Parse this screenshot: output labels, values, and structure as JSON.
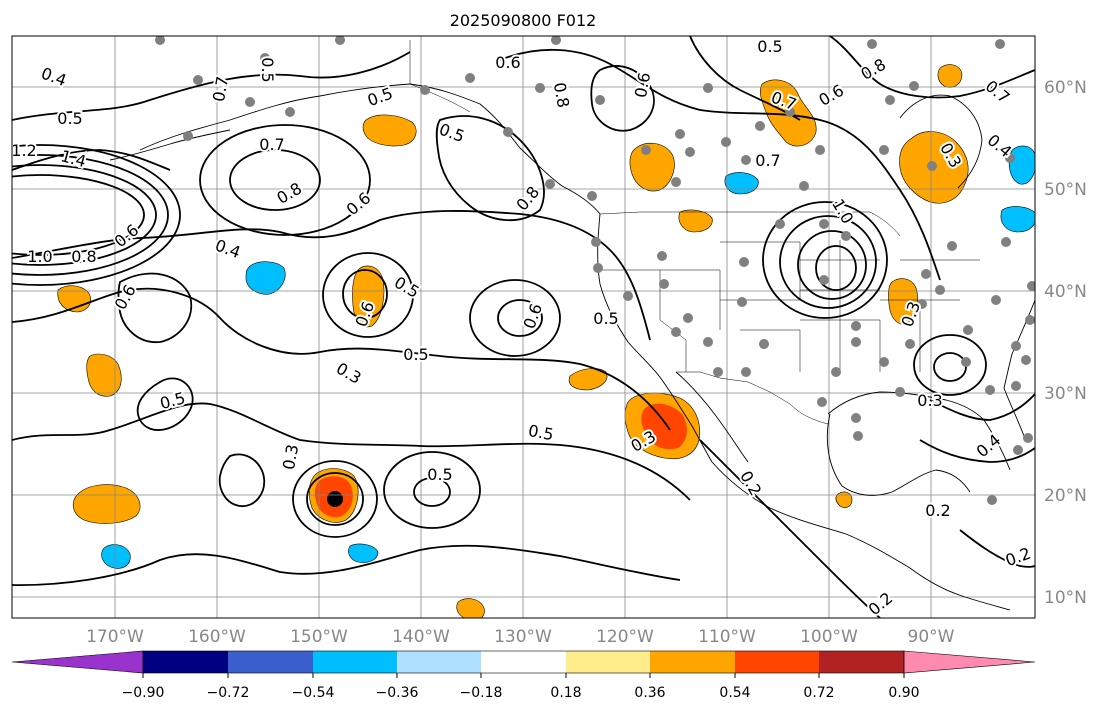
{
  "title": "2025090800 F012",
  "map": {
    "lat_labels": [
      "60°N",
      "50°N",
      "40°N",
      "30°N",
      "20°N",
      "10°N"
    ],
    "lon_labels": [
      "170°W",
      "160°W",
      "150°W",
      "140°W",
      "130°W",
      "120°W",
      "110°W",
      "100°W",
      "90°W"
    ]
  },
  "contour_labels": [
    "0.4",
    "0.5",
    "1.2",
    "1.4",
    "1.0",
    "0.8",
    "0.6",
    "0.7",
    "0.8",
    "0.6",
    "0.5",
    "0.5",
    "0.6",
    "0.5",
    "0.4",
    "0.5",
    "0.6",
    "0.6",
    "0.5",
    "0.5",
    "0.3",
    "0.5",
    "0.5",
    "0.6",
    "0.3",
    "0.5",
    "0.3",
    "0.2",
    "0.7",
    "0.6",
    "0.8",
    "0.7",
    "1.0",
    "0.4",
    "0.3",
    "0.3",
    "0.4",
    "0.2",
    "0.2",
    "0.2",
    "0.8",
    "0.7",
    "0.5",
    "0.7",
    "0.6",
    "0.8",
    "0.3"
  ],
  "colorbar": {
    "colors": [
      "#9a32cd",
      "#000080",
      "#3a5fcd",
      "#00bfff",
      "#afe0ff",
      "#ffffff",
      "#ffec8b",
      "#ffa500",
      "#ff4500",
      "#b22222",
      "#ff8ab0"
    ],
    "tick_labels": [
      "−0.90",
      "−0.72",
      "−0.54",
      "−0.36",
      "−0.18",
      "0.18",
      "0.36",
      "0.54",
      "0.72",
      "0.90"
    ]
  },
  "colors": {
    "orange": "#ffa500",
    "red": "#ff4500",
    "blue": "#00bfff",
    "grid": "#888888",
    "station_dot": "#808080"
  }
}
